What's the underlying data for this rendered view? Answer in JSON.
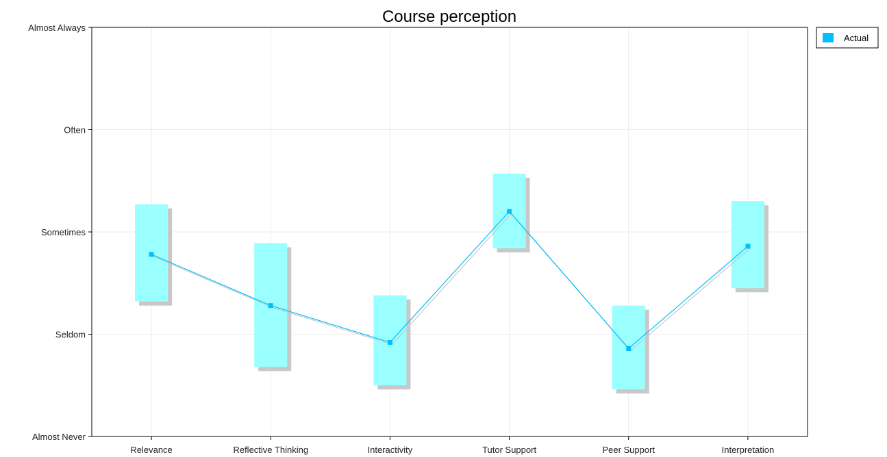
{
  "chart_data": {
    "type": "line",
    "title": "Course perception",
    "xlabel": "",
    "ylabel": "",
    "categories": [
      "Relevance",
      "Reflective Thinking",
      "Interactivity",
      "Tutor Support",
      "Peer Support",
      "Interpretation"
    ],
    "y_tick_labels": [
      "Almost Never",
      "Seldom",
      "Sometimes",
      "Often",
      "Almost Always"
    ],
    "ylim": [
      1,
      5
    ],
    "grid": true,
    "legend_position": "top-right",
    "series": [
      {
        "name": "Actual",
        "color": "#00bfff",
        "values": [
          2.78,
          2.28,
          1.92,
          3.2,
          1.86,
          2.86
        ],
        "range_low": [
          2.32,
          1.68,
          1.5,
          2.84,
          1.46,
          2.45
        ],
        "range_high": [
          3.27,
          2.89,
          2.38,
          3.57,
          2.28,
          3.3
        ]
      }
    ],
    "range_color": "#99ffff",
    "shadow_color": "#c8c8c8"
  }
}
